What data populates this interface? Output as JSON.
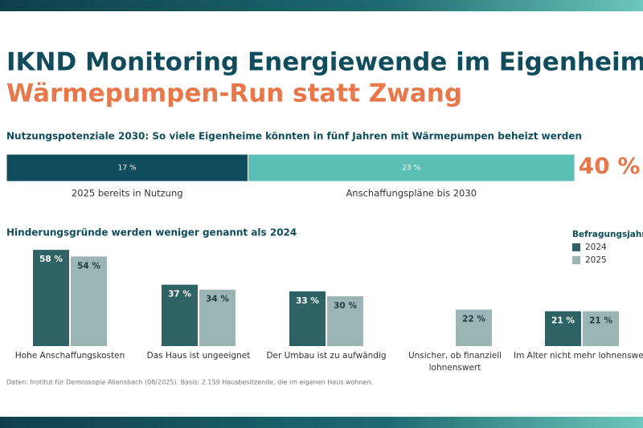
{
  "title_line1": "IKND Monitoring Energiewende im Eigenheim:",
  "title_line2": "Wärmepumpen-Run statt Zwang",
  "chart_data": [
    {
      "type": "stacked-hbar",
      "title": "Nutzungspotenziale 2030: So viele Eigenheime könnten in fünf Jahren mit Wärmepumpen beheizt werden",
      "xlim": [
        0,
        40
      ],
      "series": [
        {
          "name": "2025 bereits in Nutzung",
          "color": "#0f4c5c",
          "values": [
            17
          ],
          "value_labels": [
            "17 %"
          ]
        },
        {
          "name": "Anschaffungspläne bis 2030",
          "color": "#5bbfb5",
          "values": [
            23
          ],
          "value_labels": [
            "23 %"
          ]
        }
      ],
      "annotation": "40 %"
    },
    {
      "type": "grouped-bar",
      "title": "Hinderungsgründe werden weniger genannt als 2024",
      "legend_title": "Befragungsjahr",
      "ylim": [
        0,
        60
      ],
      "categories": [
        "Hohe Anschaffungskosten",
        "Das Haus ist ungeeignet",
        "Der Umbau ist zu aufwändig",
        "Unsicher, ob finanziell lohnenswert",
        "Im Alter nicht mehr lohnenswert"
      ],
      "series": [
        {
          "name": "2024",
          "color": "#2e6264",
          "values": [
            58,
            37,
            33,
            null,
            21
          ],
          "value_labels": [
            "58 %",
            "37 %",
            "33 %",
            null,
            "21 %"
          ]
        },
        {
          "name": "2025",
          "color": "#9ab5b3",
          "values": [
            54,
            34,
            30,
            22,
            21
          ],
          "value_labels": [
            "54 %",
            "34 %",
            "30 %",
            "22 %",
            "21 %"
          ]
        }
      ]
    }
  ],
  "source": "Daten: Institut für Demoskopie Allensbach (08/2025). Basis: 2.159 Hausbesitzende, die im eigenen Haus wohnen."
}
